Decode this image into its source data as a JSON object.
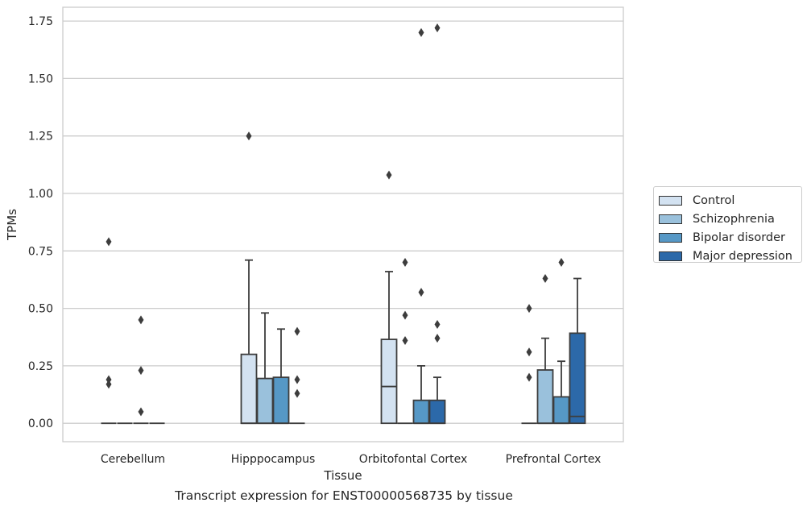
{
  "chart_data": {
    "type": "box",
    "xlabel": "Tissue",
    "ylabel": "TPMs",
    "caption": "Transcript expression for ENST00000568735 by tissue",
    "ylim": [
      -0.08,
      1.81
    ],
    "yticks": [
      0,
      0.25,
      0.5,
      0.75,
      1.0,
      1.25,
      1.5,
      1.75
    ],
    "ytick_labels": [
      "0.00",
      "0.25",
      "0.50",
      "0.75",
      "1.00",
      "1.25",
      "1.50",
      "1.75"
    ],
    "grid": true,
    "legend_position": "right",
    "categories": [
      "Cerebellum",
      "Hipppocampus",
      "Orbitofontal Cortex",
      "Prefrontal Cortex"
    ],
    "series": [
      {
        "name": "Control",
        "color": "#d3e2f1",
        "boxes": [
          {
            "q1": 0,
            "median": 0,
            "q3": 0,
            "whislo": 0,
            "whishi": 0,
            "outliers": [
              0.79,
              0.19,
              0.17
            ]
          },
          {
            "q1": 0,
            "median": 0,
            "q3": 0.3,
            "whislo": 0,
            "whishi": 0.71,
            "outliers": [
              1.25
            ]
          },
          {
            "q1": 0,
            "median": 0.16,
            "q3": 0.365,
            "whislo": 0,
            "whishi": 0.66,
            "outliers": [
              1.08
            ]
          },
          {
            "q1": 0,
            "median": 0,
            "q3": 0,
            "whislo": 0,
            "whishi": 0,
            "outliers": [
              0.5,
              0.31,
              0.2
            ]
          }
        ]
      },
      {
        "name": "Schizophrenia",
        "color": "#9ac1dc",
        "boxes": [
          {
            "q1": 0,
            "median": 0,
            "q3": 0,
            "whislo": 0,
            "whishi": 0,
            "outliers": []
          },
          {
            "q1": 0,
            "median": 0,
            "q3": 0.195,
            "whislo": 0,
            "whishi": 0.48,
            "outliers": []
          },
          {
            "q1": 0,
            "median": 0,
            "q3": 0,
            "whislo": 0,
            "whishi": 0,
            "outliers": [
              0.7,
              0.47,
              0.36
            ]
          },
          {
            "q1": 0,
            "median": 0,
            "q3": 0.232,
            "whislo": 0,
            "whishi": 0.37,
            "outliers": [
              0.63
            ]
          }
        ]
      },
      {
        "name": "Bipolar disorder",
        "color": "#5698c6",
        "boxes": [
          {
            "q1": 0,
            "median": 0,
            "q3": 0,
            "whislo": 0,
            "whishi": 0,
            "outliers": [
              0.45,
              0.23,
              0.05
            ]
          },
          {
            "q1": 0,
            "median": 0,
            "q3": 0.2,
            "whislo": 0,
            "whishi": 0.41,
            "outliers": []
          },
          {
            "q1": 0,
            "median": 0,
            "q3": 0.1,
            "whislo": 0,
            "whishi": 0.25,
            "outliers": [
              1.7,
              0.57
            ]
          },
          {
            "q1": 0,
            "median": 0,
            "q3": 0.115,
            "whislo": 0,
            "whishi": 0.27,
            "outliers": [
              0.7
            ]
          }
        ]
      },
      {
        "name": "Major depression",
        "color": "#2c69a9",
        "boxes": [
          {
            "q1": 0,
            "median": 0,
            "q3": 0,
            "whislo": 0,
            "whishi": 0,
            "outliers": []
          },
          {
            "q1": 0,
            "median": 0,
            "q3": 0,
            "whislo": 0,
            "whishi": 0,
            "outliers": [
              0.4,
              0.19,
              0.13
            ]
          },
          {
            "q1": 0,
            "median": 0,
            "q3": 0.1,
            "whislo": 0,
            "whishi": 0.2,
            "outliers": [
              1.72,
              0.43,
              0.37
            ]
          },
          {
            "q1": 0,
            "median": 0.03,
            "q3": 0.392,
            "whislo": 0,
            "whishi": 0.63,
            "outliers": []
          }
        ]
      }
    ]
  }
}
